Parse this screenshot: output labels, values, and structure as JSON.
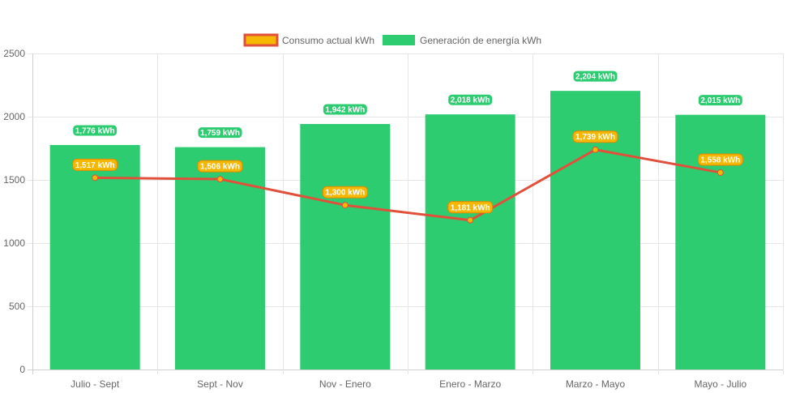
{
  "chart_data": {
    "type": "bar",
    "categories": [
      "Julio - Sept",
      "Sept - Nov",
      "Nov - Enero",
      "Enero - Marzo",
      "Marzo - Mayo",
      "Mayo - Julio"
    ],
    "series": [
      {
        "name": "Consumo actual kWh",
        "type": "line",
        "values": [
          1517,
          1506,
          1300,
          1181,
          1739,
          1558
        ],
        "labels": [
          "1,517 kWh",
          "1,506 kWh",
          "1,300 kWh",
          "1,181 kWh",
          "1,739 kWh",
          "1,558 kWh"
        ],
        "color": "#e0503a",
        "point_color": "#f5b700",
        "legend_fill": "#f5b700"
      },
      {
        "name": "Generación de energía kWh",
        "type": "bar",
        "values": [
          1776,
          1759,
          1942,
          2018,
          2204,
          2015
        ],
        "labels": [
          "1,776 kWh",
          "1,759 kWh",
          "1,942 kWh",
          "2,018 kWh",
          "2,204 kWh",
          "2,015 kWh"
        ],
        "color": "#2ecc71"
      }
    ],
    "yticks": [
      "0",
      "500",
      "1000",
      "1500",
      "2000",
      "2500"
    ],
    "ylim": [
      0,
      2500
    ],
    "grid": true,
    "legend": "top-center"
  }
}
